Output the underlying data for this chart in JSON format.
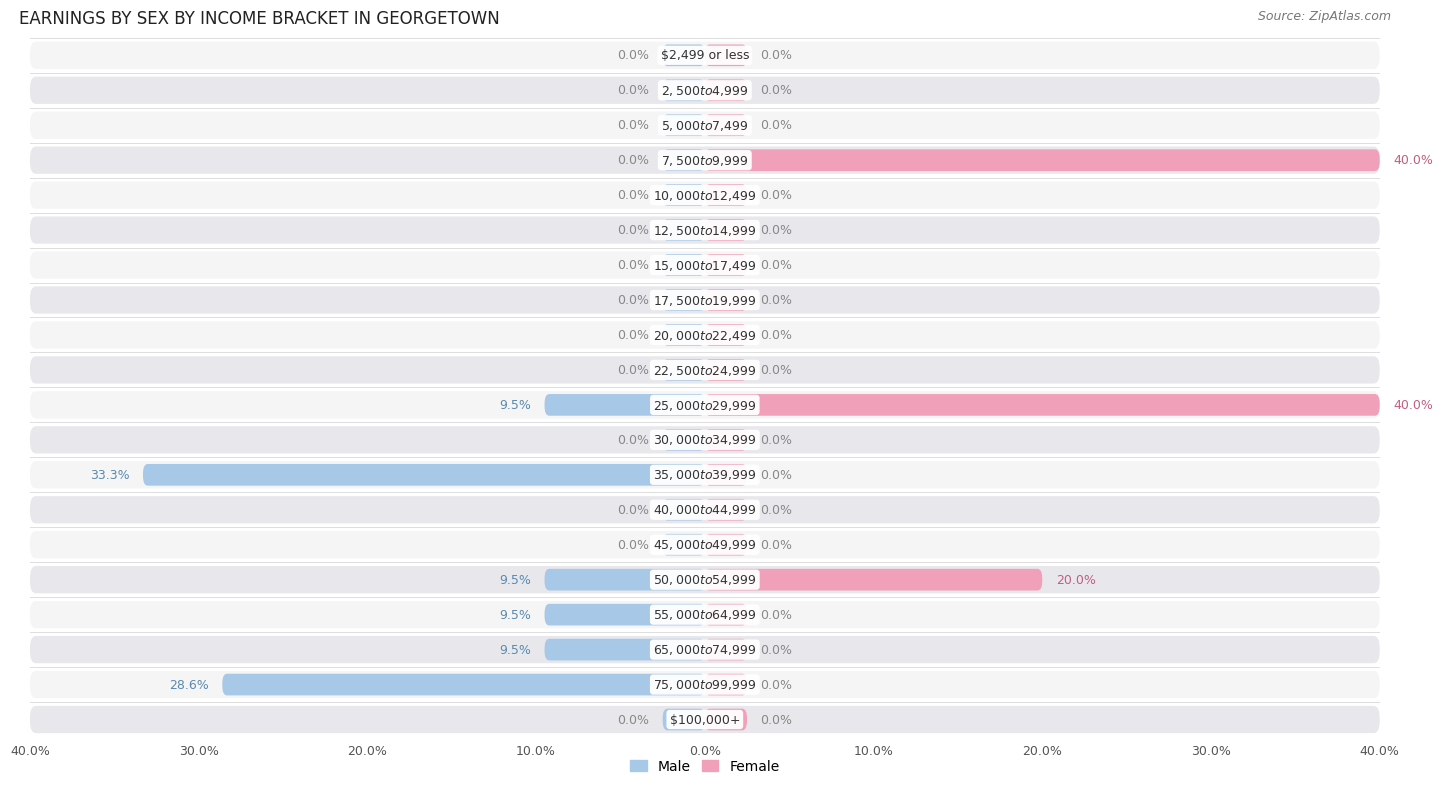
{
  "title": "EARNINGS BY SEX BY INCOME BRACKET IN GEORGETOWN",
  "source": "Source: ZipAtlas.com",
  "categories": [
    "$2,499 or less",
    "$2,500 to $4,999",
    "$5,000 to $7,499",
    "$7,500 to $9,999",
    "$10,000 to $12,499",
    "$12,500 to $14,999",
    "$15,000 to $17,499",
    "$17,500 to $19,999",
    "$20,000 to $22,499",
    "$22,500 to $24,999",
    "$25,000 to $29,999",
    "$30,000 to $34,999",
    "$35,000 to $39,999",
    "$40,000 to $44,999",
    "$45,000 to $49,999",
    "$50,000 to $54,999",
    "$55,000 to $64,999",
    "$65,000 to $74,999",
    "$75,000 to $99,999",
    "$100,000+"
  ],
  "male": [
    0.0,
    0.0,
    0.0,
    0.0,
    0.0,
    0.0,
    0.0,
    0.0,
    0.0,
    0.0,
    9.5,
    0.0,
    33.3,
    0.0,
    0.0,
    9.5,
    9.5,
    9.5,
    28.6,
    0.0
  ],
  "female": [
    0.0,
    0.0,
    0.0,
    40.0,
    0.0,
    0.0,
    0.0,
    0.0,
    0.0,
    0.0,
    40.0,
    0.0,
    0.0,
    0.0,
    0.0,
    20.0,
    0.0,
    0.0,
    0.0,
    0.0
  ],
  "male_color": "#a8c8e8",
  "female_color": "#f0a0b8",
  "male_label_color": "#5a8ab0",
  "female_label_color": "#c06080",
  "bg_color": "#ffffff",
  "row_bg_light": "#f5f5f5",
  "row_bg_dark": "#e8e8ec",
  "row_separator": "#d8d8d8",
  "axis_limit": 40.0,
  "stub_size": 2.5,
  "title_fontsize": 12,
  "source_fontsize": 9,
  "value_fontsize": 9,
  "category_fontsize": 9,
  "tick_fontsize": 9,
  "legend_fontsize": 10,
  "bar_height": 0.62
}
